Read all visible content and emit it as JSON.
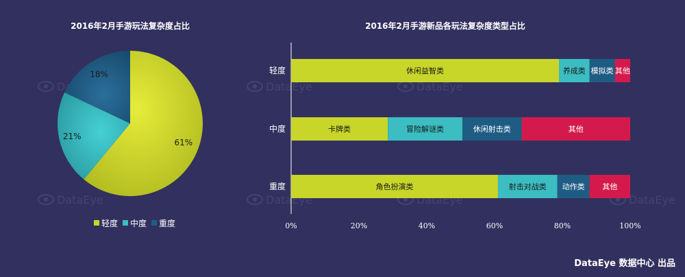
{
  "colors": {
    "background": "#32305e",
    "light": "#c8d62a",
    "teal": "#3bbdc1",
    "navy": "#1f5c84",
    "red": "#d41a4c"
  },
  "footer": "DataEye 数据中心 出品",
  "watermark": "DataEye",
  "chart_data": [
    {
      "type": "pie",
      "title": "2016年2月手游玩法复杂度占比",
      "slices": [
        {
          "label": "轻度",
          "value": 61,
          "text": "61%",
          "color": "#c8d62a"
        },
        {
          "label": "中度",
          "value": 21,
          "text": "21%",
          "color": "#3bbdc1"
        },
        {
          "label": "重度",
          "value": 18,
          "text": "18%",
          "color": "#1f5c84"
        }
      ],
      "legend": [
        "轻度",
        "中度",
        "重度"
      ]
    },
    {
      "type": "bar",
      "orientation": "horizontal",
      "stacked": true,
      "title": "2016年2月手游新品各玩法复杂度类型占比",
      "categories": [
        "轻度",
        "中度",
        "重度"
      ],
      "xlim": [
        0,
        100
      ],
      "xticks": [
        "0%",
        "20%",
        "40%",
        "60%",
        "80%",
        "100%"
      ],
      "bars": [
        {
          "category": "轻度",
          "segments": [
            {
              "label": "休闲益智类",
              "value": 79,
              "color": "#c8d62a"
            },
            {
              "label": "养成类",
              "value": 9,
              "color": "#3bbdc1"
            },
            {
              "label": "模拟类",
              "value": 7.5,
              "color": "#1f5c84"
            },
            {
              "label": "其他",
              "value": 4.5,
              "color": "#d41a4c"
            }
          ]
        },
        {
          "category": "中度",
          "segments": [
            {
              "label": "卡牌类",
              "value": 28.5,
              "color": "#c8d62a"
            },
            {
              "label": "冒险解谜类",
              "value": 22,
              "color": "#3bbdc1"
            },
            {
              "label": "休闲射击类",
              "value": 17.5,
              "color": "#1f5c84"
            },
            {
              "label": "其他",
              "value": 32,
              "color": "#d41a4c"
            }
          ]
        },
        {
          "category": "重度",
          "segments": [
            {
              "label": "角色扮演类",
              "value": 61,
              "color": "#c8d62a"
            },
            {
              "label": "射击对战类",
              "value": 17.5,
              "color": "#3bbdc1"
            },
            {
              "label": "动作类",
              "value": 9.5,
              "color": "#1f5c84"
            },
            {
              "label": "其他",
              "value": 12,
              "color": "#d41a4c"
            }
          ]
        }
      ]
    }
  ]
}
